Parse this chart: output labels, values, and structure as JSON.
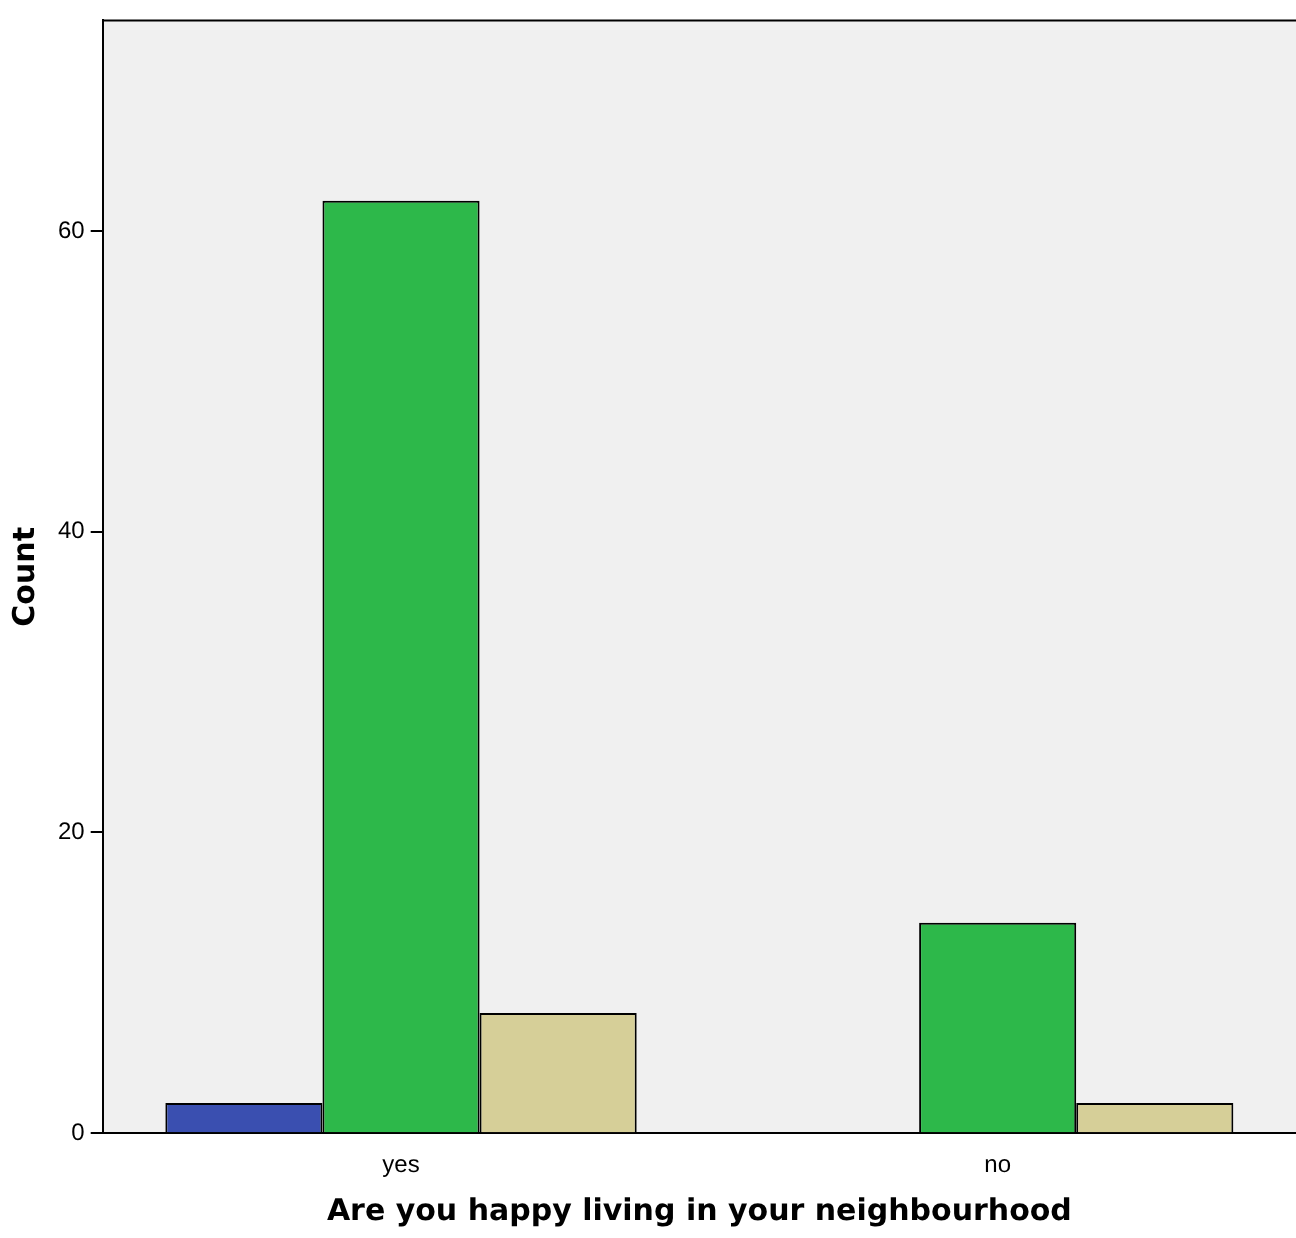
{
  "chart_data": {
    "type": "bar",
    "xlabel": "Are you happy living in your neighbourhood",
    "ylabel": "Count",
    "categories": [
      "yes",
      "no"
    ],
    "series": [
      {
        "color": "#3a4fb0",
        "values": [
          2,
          0
        ]
      },
      {
        "color": "#2db84a",
        "values": [
          62,
          14
        ]
      },
      {
        "color": "#d6cf98",
        "values": [
          8,
          2
        ]
      }
    ],
    "ylim": [
      0,
      74
    ],
    "yticks": [
      0,
      20,
      40,
      60
    ],
    "grid": false,
    "legend": false
  }
}
